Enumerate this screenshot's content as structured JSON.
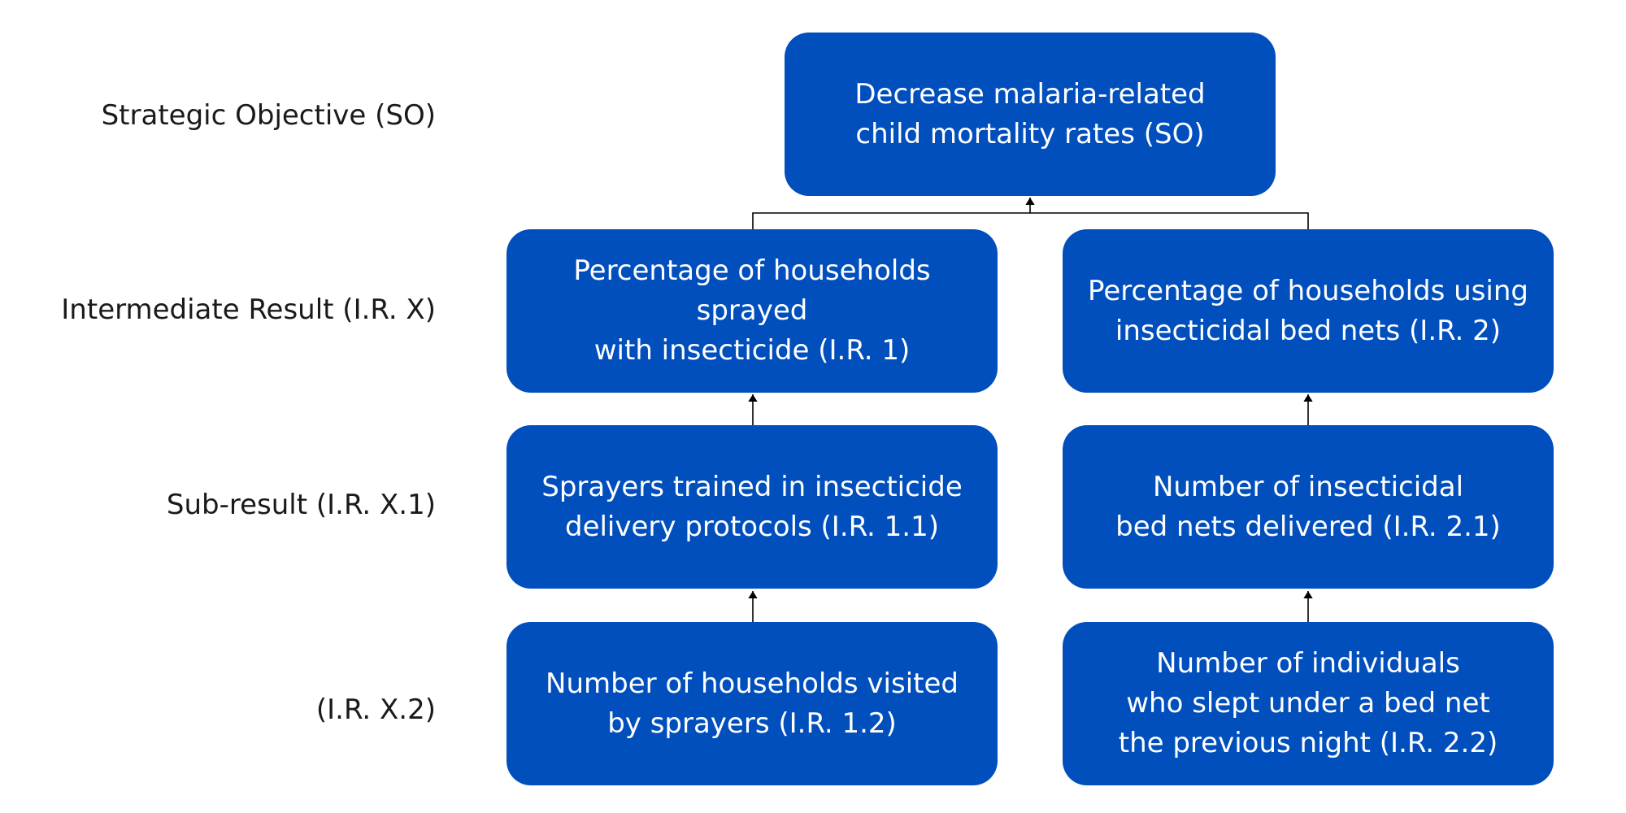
{
  "row_labels": {
    "so": "Strategic Objective (SO)",
    "ir": "Intermediate Result (I.R. X)",
    "sub": "Sub-result (I.R. X.1)",
    "sub2": "(I.R. X.2)"
  },
  "boxes": {
    "so": "Decrease malaria-related\nchild mortality rates (SO)",
    "ir1": "Percentage of households sprayed\nwith insecticide (I.R. 1)",
    "ir2": "Percentage of households using\ninsecticidal bed nets (I.R. 2)",
    "ir11": "Sprayers trained in insecticide\ndelivery protocols (I.R. 1.1)",
    "ir21": "Number of insecticidal\nbed nets delivered (I.R. 2.1)",
    "ir12": "Number of households visited\nby sprayers (I.R. 1.2)",
    "ir22": "Number of individuals\nwho slept under a bed net\nthe previous night (I.R. 2.2)"
  },
  "colors": {
    "box_fill": "#004fbd",
    "box_text": "#ffffff",
    "label_text": "#1a1a1a",
    "connector": "#000000"
  }
}
